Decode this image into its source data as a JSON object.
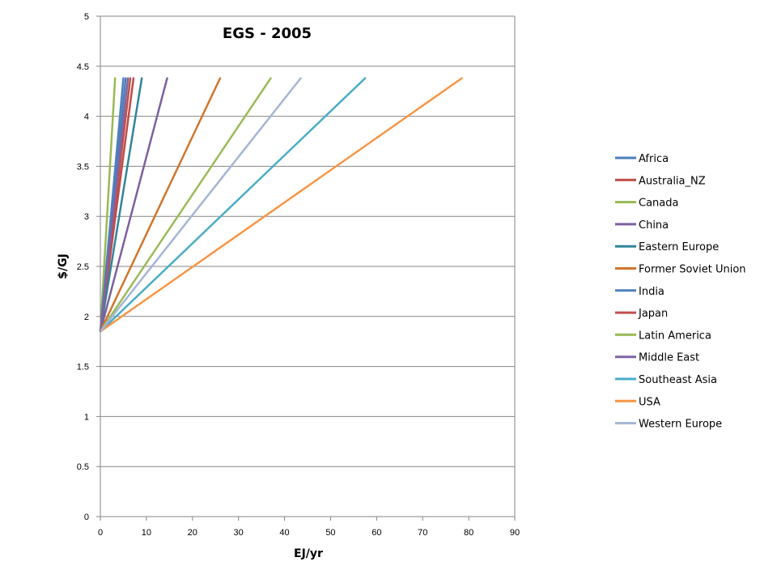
{
  "chart_data": {
    "type": "line",
    "title": "EGS - 2005",
    "xlabel": "EJ/yr",
    "ylabel": "$/GJ",
    "xlim": [
      0,
      90
    ],
    "ylim": [
      0,
      5
    ],
    "xticks": [
      "0",
      "10",
      "20",
      "30",
      "40",
      "50",
      "60",
      "70",
      "80",
      "90"
    ],
    "yticks": [
      "0",
      "0.5",
      "1",
      "1.5",
      "2",
      "2.5",
      "3",
      "3.5",
      "4",
      "4.5",
      "5"
    ],
    "grid": "horizontal",
    "legend_position": "right",
    "series": [
      {
        "name": "Africa",
        "color": "#4a7ebb",
        "points": [
          [
            0,
            1.85
          ],
          [
            5.5,
            4.38
          ]
        ]
      },
      {
        "name": "Australia_NZ",
        "color": "#be4b48",
        "points": [
          [
            0,
            1.85
          ],
          [
            7.2,
            4.38
          ]
        ]
      },
      {
        "name": "Canada",
        "color": "#98b954",
        "points": [
          [
            0,
            1.85
          ],
          [
            3.2,
            4.38
          ]
        ]
      },
      {
        "name": "China",
        "color": "#7d60a0",
        "points": [
          [
            0,
            1.85
          ],
          [
            14.5,
            4.38
          ]
        ]
      },
      {
        "name": "Eastern Europe",
        "color": "#31849b",
        "points": [
          [
            0,
            1.85
          ],
          [
            9.0,
            4.38
          ]
        ]
      },
      {
        "name": "Former Soviet Union",
        "color": "#d1752c",
        "points": [
          [
            0,
            1.85
          ],
          [
            26.0,
            4.38
          ]
        ]
      },
      {
        "name": "India",
        "color": "#4f81bd",
        "points": [
          [
            0,
            1.85
          ],
          [
            5.0,
            4.38
          ]
        ]
      },
      {
        "name": "Japan",
        "color": "#c0504d",
        "points": [
          [
            0,
            1.85
          ],
          [
            6.5,
            4.38
          ]
        ]
      },
      {
        "name": "Latin America",
        "color": "#9bbb59",
        "points": [
          [
            0,
            1.85
          ],
          [
            37.0,
            4.38
          ]
        ]
      },
      {
        "name": "Middle East",
        "color": "#8064a2",
        "points": [
          [
            0,
            1.85
          ],
          [
            6.0,
            4.38
          ]
        ]
      },
      {
        "name": "Southeast Asia",
        "color": "#4bacc6",
        "points": [
          [
            0,
            1.85
          ],
          [
            57.5,
            4.38
          ]
        ]
      },
      {
        "name": "USA",
        "color": "#f79646",
        "points": [
          [
            0,
            1.85
          ],
          [
            78.5,
            4.38
          ]
        ]
      },
      {
        "name": "Western Europe",
        "color": "#a5b6d4",
        "points": [
          [
            0,
            1.85
          ],
          [
            43.5,
            4.38
          ]
        ]
      }
    ]
  }
}
